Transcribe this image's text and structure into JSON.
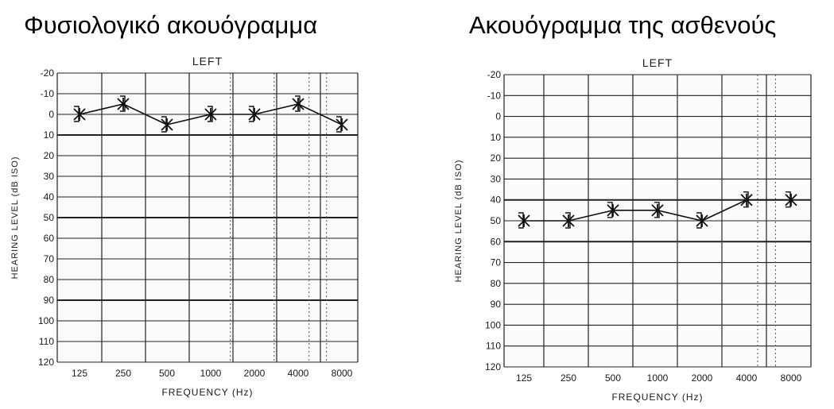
{
  "panels": [
    {
      "heading": "Φυσιολογικό ακουόγραμμα",
      "chart_data": {
        "type": "line",
        "title": "LEFT",
        "xlabel": "FREQUENCY (Hz)",
        "ylabel": "HEARING LEVEL (dB ISO)",
        "x_categories": [
          "125",
          "250",
          "500",
          "1000",
          "2000",
          "4000",
          "8000"
        ],
        "y_ticks": [
          -20,
          -10,
          0,
          10,
          20,
          30,
          40,
          50,
          60,
          70,
          80,
          90,
          100,
          110,
          120
        ],
        "ylim": [
          -20,
          120
        ],
        "y_inverted": true,
        "grid": true,
        "series": [
          {
            "marker_air": "x",
            "marker_bone": "]",
            "values": [
              0,
              5,
              5,
              0,
              0,
              5,
              5
            ],
            "signs": [
              1,
              -1,
              1,
              1,
              1,
              -1,
              1
            ]
          }
        ]
      }
    },
    {
      "heading": "Ακουόγραμμα της ασθενούς",
      "chart_data": {
        "type": "line",
        "title": "LEFT",
        "xlabel": "FREQUENCY (Hz)",
        "ylabel": "HEARING LEVEL (dB ISO)",
        "x_categories": [
          "125",
          "250",
          "500",
          "1000",
          "2000",
          "4000",
          "8000"
        ],
        "y_ticks": [
          -20,
          -10,
          0,
          10,
          20,
          30,
          40,
          50,
          60,
          70,
          80,
          90,
          100,
          110,
          120
        ],
        "ylim": [
          -20,
          120
        ],
        "y_inverted": true,
        "grid": true,
        "series": [
          {
            "marker_air": "x",
            "marker_bone": "]",
            "values": [
              50,
              50,
              45,
              45,
              50,
              40,
              40
            ]
          }
        ]
      }
    }
  ]
}
